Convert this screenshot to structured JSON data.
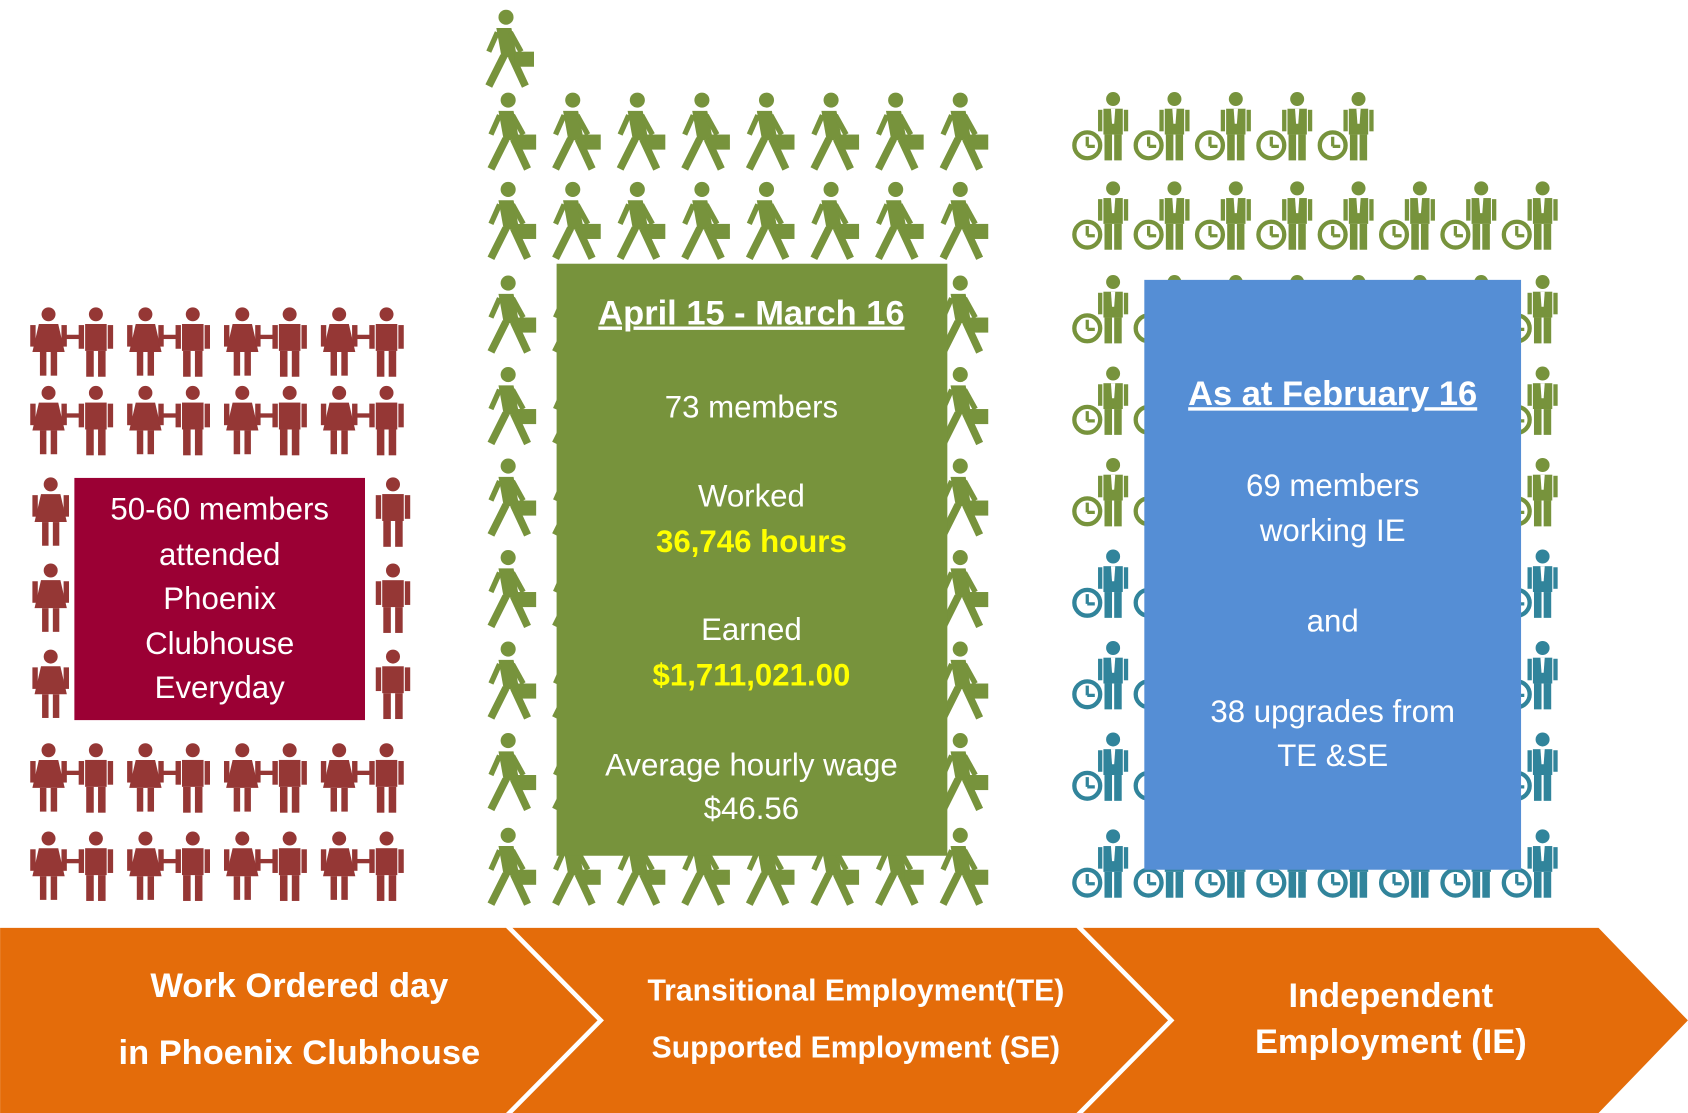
{
  "work_panel": {
    "lines": [
      "50-60 members",
      "attended",
      "Phoenix",
      "Clubhouse",
      "Everyday"
    ]
  },
  "te_se_panel": {
    "heading": "April 15 - March 16",
    "members": "73 members",
    "worked_label": "Worked",
    "hours": "36,746 hours",
    "earned_label": "Earned",
    "earnings": "$1,711,021.00",
    "wage_label": "Average hourly wage",
    "wage": "$46.56"
  },
  "ie_panel": {
    "heading": "As at February 16",
    "lines": [
      "69 members",
      "working IE",
      "and",
      "38 upgrades from",
      "TE &SE"
    ]
  },
  "stages": [
    {
      "lines": [
        "Work Ordered day",
        "in Phoenix Clubhouse"
      ]
    },
    {
      "lines": [
        "Transitional Employment(TE)",
        "Supported Employment (SE)"
      ]
    },
    {
      "lines": [
        "Independent",
        "Employment (IE)"
      ]
    }
  ]
}
